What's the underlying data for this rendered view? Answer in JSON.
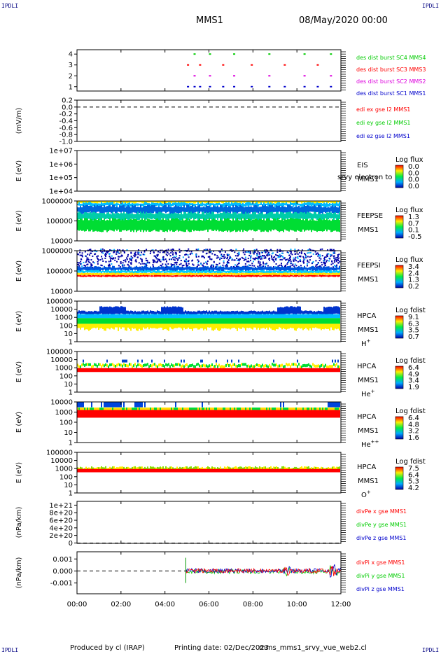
{
  "corner_tag": "IPDLI",
  "header": {
    "spacecraft": "MMS1",
    "date_time": "08/May/2020 00:00"
  },
  "footer": {
    "produced_by": "Produced by cl (IRAP)",
    "printing_date": "Printing date: 02/Dec/2023",
    "script": "mms_mms1_srvy_vue_web2.cl"
  },
  "colors": {
    "red": "#ff0000",
    "green": "#00cc00",
    "blue": "#0000cc",
    "magenta": "#dd00dd",
    "dashed": "#000000"
  },
  "chart_data": [
    {
      "type": "scatter",
      "id": "burst",
      "ytick_labels": [
        "4",
        "3",
        "2",
        "1"
      ],
      "yticks": [
        4,
        3,
        2,
        1
      ],
      "ylim": [
        0.6,
        4.4
      ],
      "legend": [
        {
          "label": "des dist burst SC1 MMS1",
          "color": "#0000cc",
          "y": 1
        },
        {
          "label": "des dist burst SC2 MMS2",
          "color": "#dd00dd",
          "y": 2
        },
        {
          "label": "des dist burst SC3 MMS3",
          "color": "#ff0000",
          "y": 3
        },
        {
          "label": "des dist burst SC4 MMS4",
          "color": "#00cc00",
          "y": 4
        }
      ],
      "burst_times_h": [
        5.0,
        5.3,
        5.55,
        6.0,
        6.6,
        7.1,
        7.9,
        8.7,
        9.4,
        10.3,
        10.9,
        11.5
      ]
    },
    {
      "type": "line",
      "id": "edi",
      "ylabel": "(mV/m)",
      "ylim": [
        -1.0,
        0.2
      ],
      "ytick_labels": [
        "0.2",
        "0.0",
        "-0.2",
        "-0.4",
        "-0.6",
        "-0.8",
        "-1.0"
      ],
      "yticks": [
        0.2,
        0.0,
        -0.2,
        -0.4,
        -0.6,
        -0.8,
        -1.0
      ],
      "zero_line": 0.0,
      "legend": [
        {
          "label": "edi ex gse l2 MMS1",
          "color": "#ff0000"
        },
        {
          "label": "edi ey gse l2 MMS1",
          "color": "#00cc00"
        },
        {
          "label": "edi ez gse l2 MMS1",
          "color": "#0000cc"
        }
      ]
    },
    {
      "type": "heatmap",
      "id": "eis",
      "ylabel": "E (eV)",
      "yscale": "log",
      "ytick_labels": [
        "1e+07",
        "1e+06",
        "1e+05",
        "1e+04"
      ],
      "yticks": [
        10000000.0,
        1000000.0,
        100000.0,
        10000.0
      ],
      "side_labels": [
        "EIS",
        "MMS1"
      ],
      "overflow_text": "srvy electron to",
      "cbar_title": "Log flux",
      "cbar_ticks": [
        "0.0",
        "0.0",
        "0.0",
        "0.0"
      ]
    },
    {
      "type": "heatmap",
      "id": "feepse",
      "ylabel": "E (eV)",
      "yscale": "log",
      "ytick_labels": [
        "1000000",
        "100000",
        "10000"
      ],
      "yticks": [
        1000000.0,
        100000.0,
        10000.0
      ],
      "side_labels": [
        "FEEPSE",
        "MMS1"
      ],
      "cbar_title": "Log flux",
      "cbar_ticks": [
        "1.3",
        "0.7",
        "0.1",
        "-0.5"
      ]
    },
    {
      "type": "heatmap",
      "id": "feepsi",
      "ylabel": "E (eV)",
      "yscale": "log",
      "ytick_labels": [
        "1000000",
        "100000",
        "10000"
      ],
      "yticks": [
        1000000.0,
        100000.0,
        10000.0
      ],
      "side_labels": [
        "FEEPSI",
        "MMS1"
      ],
      "cbar_title": "Log flux",
      "cbar_ticks": [
        "3.4",
        "2.4",
        "1.3",
        "0.2"
      ]
    },
    {
      "type": "heatmap",
      "id": "hpca_h",
      "ylabel": "E (eV)",
      "yscale": "log",
      "ytick_labels": [
        "100000",
        "10000",
        "1000",
        "100",
        "10",
        "1"
      ],
      "yticks": [
        100000.0,
        10000.0,
        1000.0,
        100.0,
        10.0,
        1
      ],
      "side_labels": [
        "HPCA",
        "MMS1"
      ],
      "species": "H",
      "species_sup": "+",
      "cbar_title": "Log fdist",
      "cbar_ticks": [
        "9.1",
        "6.3",
        "3.5",
        "0.7"
      ]
    },
    {
      "type": "heatmap",
      "id": "hpca_he",
      "ylabel": "E (eV)",
      "yscale": "log",
      "ytick_labels": [
        "100000",
        "10000",
        "1000",
        "100",
        "10",
        "1"
      ],
      "yticks": [
        100000.0,
        10000.0,
        1000.0,
        100.0,
        10.0,
        1
      ],
      "side_labels": [
        "HPCA",
        "MMS1"
      ],
      "species": "He",
      "species_sup": "+",
      "cbar_title": "Log fdist",
      "cbar_ticks": [
        "6.4",
        "4.9",
        "3.4",
        "1.9"
      ]
    },
    {
      "type": "heatmap",
      "id": "hpca_hepp",
      "ylabel": "E (eV)",
      "yscale": "log",
      "ytick_labels": [
        "10000",
        "1000",
        "100",
        "10",
        "1"
      ],
      "yticks": [
        10000.0,
        1000.0,
        100.0,
        10.0,
        1
      ],
      "side_labels": [
        "HPCA",
        "MMS1"
      ],
      "species": "He",
      "species_sup": "++",
      "cbar_title": "Log fdist",
      "cbar_ticks": [
        "6.4",
        "4.8",
        "3.2",
        "1.6"
      ]
    },
    {
      "type": "heatmap",
      "id": "hpca_o",
      "ylabel": "E (eV)",
      "yscale": "log",
      "ytick_labels": [
        "100000",
        "10000",
        "1000",
        "100",
        "10",
        "1"
      ],
      "yticks": [
        100000.0,
        10000.0,
        1000.0,
        100.0,
        10.0,
        1
      ],
      "side_labels": [
        "HPCA",
        "MMS1"
      ],
      "species": "O",
      "species_sup": "+",
      "cbar_title": "Log fdist",
      "cbar_ticks": [
        "7.5",
        "6.4",
        "5.3",
        "4.2"
      ]
    },
    {
      "type": "line",
      "id": "divpe",
      "ylabel": "(nPa/km)",
      "ylim": [
        -1e+19,
        1.1e+21
      ],
      "ytick_labels": [
        "1e+21",
        "8e+20",
        "6e+20",
        "4e+20",
        "2e+20",
        "0"
      ],
      "yticks": [
        1e+21,
        8e+20,
        6e+20,
        4e+20,
        2e+20,
        0
      ],
      "zero_line": 0,
      "legend": [
        {
          "label": "divPe x gse MMS1",
          "color": "#ff0000"
        },
        {
          "label": "divPe y gse MMS1",
          "color": "#00cc00"
        },
        {
          "label": "divPe z gse MMS1",
          "color": "#0000cc"
        }
      ]
    },
    {
      "type": "line",
      "id": "divpi",
      "ylabel": "(nPa/km)",
      "ylim": [
        -0.0019,
        0.0016
      ],
      "ytick_labels": [
        "0.001",
        "0.000",
        "-0.001"
      ],
      "yticks": [
        0.001,
        0.0,
        -0.001
      ],
      "zero_line": 0.0,
      "data_start_h": 4.95,
      "legend": [
        {
          "label": "divPi x gse MMS1",
          "color": "#ff0000"
        },
        {
          "label": "divPi y gse MMS1",
          "color": "#00cc00"
        },
        {
          "label": "divPi z gse MMS1",
          "color": "#0000cc"
        }
      ]
    }
  ],
  "xaxis": {
    "ticks_h": [
      0,
      2,
      4,
      6,
      8,
      10,
      12
    ],
    "tick_labels": [
      "00:00",
      "02:00",
      "04:00",
      "06:00",
      "08:00",
      "10:00",
      "12:00"
    ],
    "xlim_h": [
      0,
      12
    ]
  }
}
